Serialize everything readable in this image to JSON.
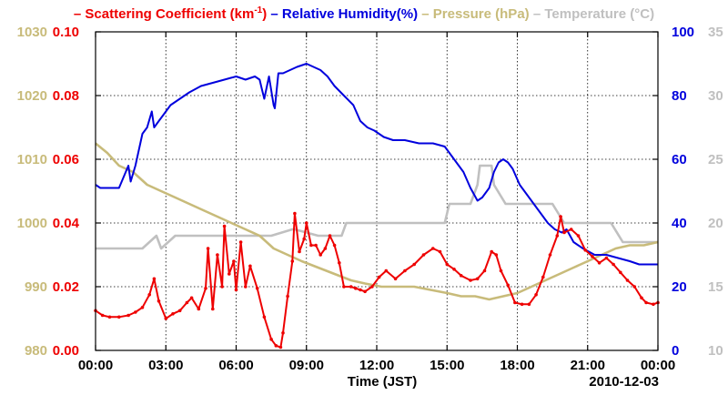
{
  "chart_data": {
    "type": "line",
    "date_label": "2010-12-03",
    "xlabel": "Time (JST)",
    "x_ticks": [
      "00:00",
      "03:00",
      "06:00",
      "09:00",
      "12:00",
      "15:00",
      "18:00",
      "21:00",
      "00:00"
    ],
    "xlim": [
      0,
      24
    ],
    "legend": [
      {
        "pre": "– Scattering Coefficient (km",
        "sup": "-1",
        "post": ")",
        "color": "#ee0000"
      },
      {
        "pre": " – Relative Humidity(%)",
        "sup": "",
        "post": "",
        "color": "#0000dd"
      },
      {
        "pre": " – Pressure (hPa)",
        "sup": "",
        "post": "",
        "color": "#c8bb7a"
      },
      {
        "pre": " – Temperature (°C)",
        "sup": "",
        "post": "",
        "color": "#c0c0c0"
      }
    ],
    "axes": [
      {
        "side": "left-outer",
        "series": "Pressure (hPa)",
        "color": "#c8bb7a",
        "ylim": [
          980,
          1030
        ],
        "ticks": [
          "980",
          "990",
          "1000",
          "1010",
          "1020",
          "1030"
        ]
      },
      {
        "side": "left-inner",
        "series": "Scattering Coefficient",
        "color": "#ee0000",
        "ylim": [
          0,
          0.1
        ],
        "ticks": [
          "0.00",
          "0.02",
          "0.04",
          "0.06",
          "0.08",
          "0.10"
        ]
      },
      {
        "side": "right-inner",
        "series": "Relative Humidity(%)",
        "color": "#0000dd",
        "ylim": [
          0,
          100
        ],
        "ticks": [
          "0",
          "20",
          "40",
          "60",
          "80",
          "100"
        ]
      },
      {
        "side": "right-outer",
        "series": "Temperature (°C)",
        "color": "#c0c0c0",
        "ylim": [
          10,
          35
        ],
        "ticks": [
          "10",
          "15",
          "20",
          "25",
          "30",
          "35"
        ]
      }
    ],
    "series": [
      {
        "name": "Scattering Coefficient",
        "color": "#ee0000",
        "axis": 1,
        "markers": true,
        "x": [
          0,
          0.3,
          0.6,
          1.0,
          1.4,
          1.7,
          2.0,
          2.3,
          2.5,
          2.7,
          3.0,
          3.3,
          3.6,
          3.9,
          4.1,
          4.4,
          4.7,
          4.8,
          5.0,
          5.2,
          5.4,
          5.5,
          5.7,
          5.9,
          6.0,
          6.2,
          6.4,
          6.6,
          6.9,
          7.2,
          7.5,
          7.7,
          7.9,
          8.0,
          8.2,
          8.4,
          8.5,
          8.7,
          8.9,
          9.0,
          9.2,
          9.4,
          9.6,
          9.8,
          10.0,
          10.2,
          10.4,
          10.6,
          10.9,
          11.1,
          11.3,
          11.5,
          11.8,
          12.1,
          12.4,
          12.8,
          13.2,
          13.6,
          14.0,
          14.4,
          14.7,
          15.0,
          15.3,
          15.6,
          16.0,
          16.3,
          16.6,
          16.9,
          17.1,
          17.3,
          17.6,
          17.9,
          18.2,
          18.5,
          18.8,
          19.1,
          19.4,
          19.7,
          19.85,
          20.0,
          20.3,
          20.6,
          20.9,
          21.2,
          21.5,
          21.8,
          22.1,
          22.4,
          22.7,
          23.0,
          23.3,
          23.5,
          23.8,
          24.0
        ],
        "y": [
          0.0125,
          0.011,
          0.0105,
          0.0105,
          0.011,
          0.012,
          0.0135,
          0.0175,
          0.0225,
          0.0155,
          0.01,
          0.0115,
          0.0125,
          0.015,
          0.0165,
          0.013,
          0.0195,
          0.032,
          0.013,
          0.03,
          0.02,
          0.039,
          0.024,
          0.028,
          0.019,
          0.034,
          0.02,
          0.0265,
          0.0195,
          0.0105,
          0.0035,
          0.0015,
          0.001,
          0.0055,
          0.017,
          0.028,
          0.043,
          0.031,
          0.035,
          0.04,
          0.033,
          0.033,
          0.03,
          0.032,
          0.036,
          0.033,
          0.0275,
          0.02,
          0.02,
          0.0195,
          0.019,
          0.0185,
          0.02,
          0.023,
          0.025,
          0.0225,
          0.025,
          0.027,
          0.03,
          0.032,
          0.031,
          0.027,
          0.0255,
          0.0235,
          0.022,
          0.0225,
          0.025,
          0.031,
          0.03,
          0.025,
          0.0205,
          0.015,
          0.0145,
          0.0145,
          0.0175,
          0.023,
          0.03,
          0.036,
          0.042,
          0.037,
          0.038,
          0.036,
          0.0315,
          0.0295,
          0.0275,
          0.029,
          0.027,
          0.0245,
          0.022,
          0.02,
          0.0165,
          0.015,
          0.0145,
          0.015
        ]
      },
      {
        "name": "Relative Humidity(%)",
        "color": "#0000dd",
        "axis": 2,
        "markers": false,
        "x": [
          0,
          0.2,
          0.6,
          1.0,
          1.4,
          1.5,
          1.7,
          2.0,
          2.2,
          2.4,
          2.5,
          2.7,
          2.9,
          3.2,
          3.6,
          4.0,
          4.5,
          5.0,
          5.5,
          6.0,
          6.4,
          6.8,
          7.0,
          7.1,
          7.2,
          7.4,
          7.6,
          7.65,
          7.8,
          8.0,
          8.3,
          8.6,
          9.0,
          9.3,
          9.6,
          9.9,
          10.2,
          10.6,
          11.0,
          11.3,
          11.6,
          11.9,
          12.3,
          12.7,
          13.2,
          13.8,
          14.4,
          14.9,
          15.3,
          15.7,
          16.0,
          16.3,
          16.5,
          16.8,
          17.0,
          17.2,
          17.4,
          17.6,
          17.8,
          18.1,
          18.5,
          18.9,
          19.3,
          19.6,
          19.9,
          20.1,
          20.4,
          20.8,
          21.3,
          21.8,
          22.3,
          22.8,
          23.2,
          23.6,
          24.0
        ],
        "y": [
          52,
          51,
          51,
          51,
          58,
          53,
          58,
          68,
          70,
          75,
          70,
          72,
          74,
          77,
          79,
          81,
          83,
          84,
          85,
          86,
          85,
          86,
          85,
          82,
          79,
          86,
          77,
          76,
          87,
          87,
          88,
          89,
          90,
          89,
          88,
          86,
          83,
          80,
          77,
          72,
          70,
          69,
          67,
          66,
          66,
          65,
          65,
          64,
          60,
          56,
          51,
          47,
          48,
          51,
          56,
          59,
          60,
          59,
          57,
          52,
          48,
          44,
          40,
          38,
          37,
          38,
          34,
          32,
          30,
          30,
          29,
          28,
          27,
          27,
          27
        ]
      },
      {
        "name": "Pressure (hPa)",
        "color": "#c8bb7a",
        "axis": 0,
        "markers": false,
        "x": [
          0,
          0.5,
          1.0,
          1.6,
          2.2,
          2.8,
          3.4,
          4.0,
          4.6,
          5.2,
          5.8,
          6.4,
          7.0,
          7.6,
          8.2,
          8.8,
          9.5,
          10.2,
          10.9,
          11.5,
          12.2,
          12.9,
          13.6,
          14.3,
          15.0,
          15.6,
          16.2,
          16.8,
          17.4,
          18.0,
          18.6,
          19.2,
          19.8,
          20.4,
          21.0,
          21.6,
          22.2,
          22.8,
          23.4,
          24.0
        ],
        "y": [
          1012.5,
          1011,
          1009,
          1008,
          1006,
          1005,
          1004,
          1003,
          1002,
          1001,
          1000,
          999,
          998,
          996,
          995,
          994,
          993,
          992,
          991,
          990.5,
          990,
          990,
          990,
          989.5,
          989,
          988.5,
          988.5,
          988,
          988.5,
          989,
          990,
          991,
          992,
          993,
          994,
          995,
          996,
          996.5,
          996.5,
          997
        ]
      },
      {
        "name": "Temperature (°C)",
        "color": "#c0c0c0",
        "axis": 3,
        "markers": false,
        "x": [
          0,
          1.5,
          2.0,
          2.6,
          2.8,
          3.4,
          4.5,
          5.5,
          6.5,
          7.5,
          8.4,
          8.5,
          9.5,
          10.5,
          10.7,
          12.0,
          13.5,
          14.9,
          15.1,
          15.5,
          16.0,
          16.3,
          16.4,
          16.9,
          17.0,
          17.5,
          18.5,
          19.5,
          20.0,
          21.0,
          22.0,
          22.5,
          23.0,
          24.0
        ],
        "y": [
          18,
          18,
          18,
          19,
          18,
          19,
          19,
          19,
          19,
          19,
          19.5,
          19.5,
          19,
          19,
          20,
          20,
          20,
          20,
          21.5,
          21.5,
          21.5,
          23,
          24.5,
          24.5,
          23,
          21.5,
          21.5,
          21.5,
          20,
          20,
          20,
          18.5,
          18.5,
          18.5
        ]
      }
    ]
  }
}
